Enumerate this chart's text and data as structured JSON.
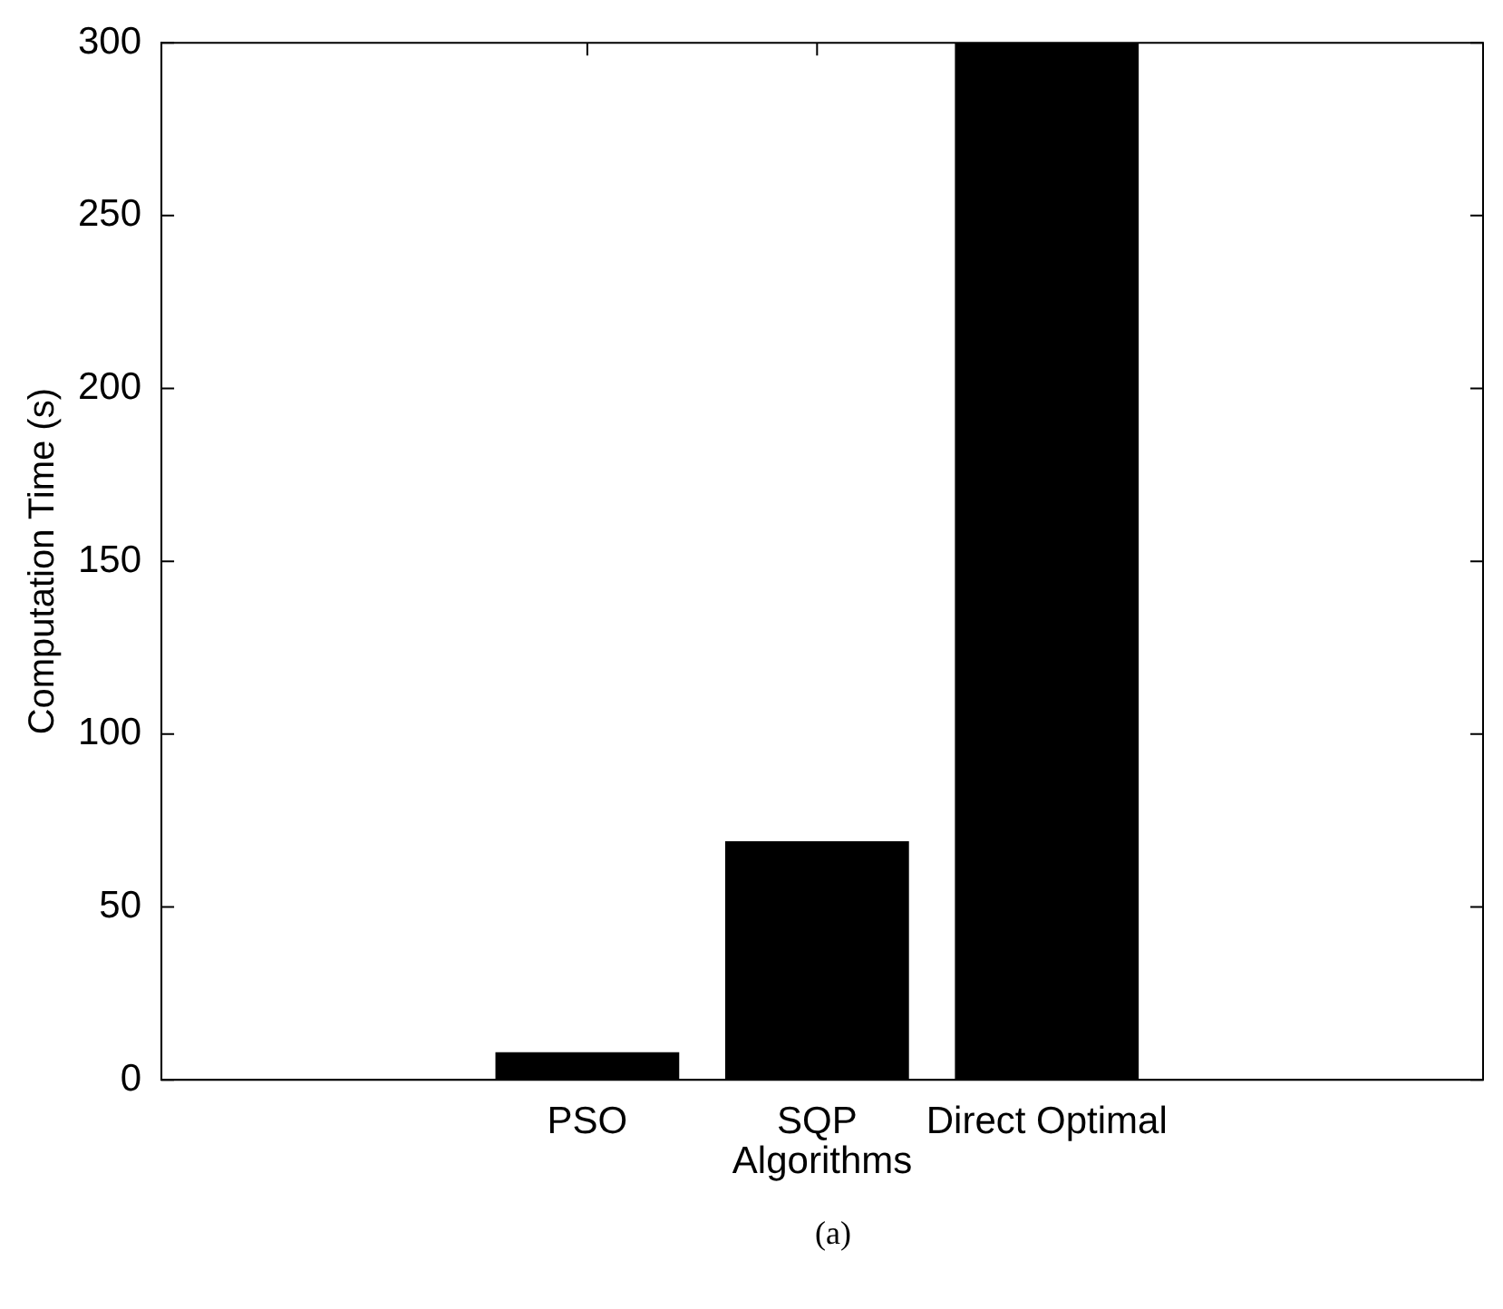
{
  "chart_data": {
    "type": "bar",
    "categories": [
      "PSO",
      "SQP",
      "Direct Optimal"
    ],
    "values": [
      8,
      69,
      300
    ],
    "color": "#000000",
    "xlabel": "Algorithms",
    "ylabel": "Computation Time (s)",
    "ylim": [
      0,
      300
    ],
    "yticks": [
      0,
      50,
      100,
      150,
      200,
      250,
      300
    ],
    "legend": false,
    "annotations": [
      "(a)"
    ]
  }
}
